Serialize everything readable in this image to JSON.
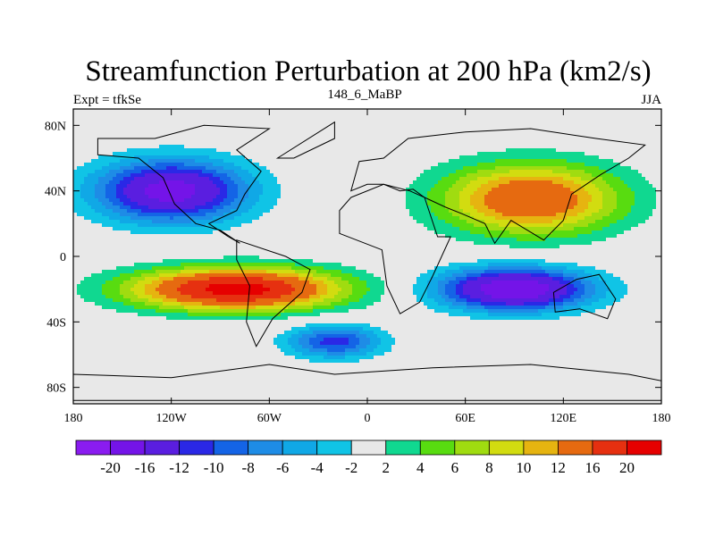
{
  "chart_data": {
    "type": "heatmap",
    "title": "Streamfunction Perturbation at 200 hPa (km2/s)",
    "left_label": "Expt = tfkSe",
    "center_label": "148_6_MaBP",
    "right_label": "JJA",
    "xlabel": "",
    "ylabel": "",
    "xlim": [
      -180,
      180
    ],
    "ylim": [
      -90,
      90
    ],
    "x_ticks": [
      {
        "value": -180,
        "label": "180"
      },
      {
        "value": -120,
        "label": "120W"
      },
      {
        "value": -60,
        "label": "60W"
      },
      {
        "value": 0,
        "label": "0"
      },
      {
        "value": 60,
        "label": "60E"
      },
      {
        "value": 120,
        "label": "120E"
      },
      {
        "value": 180,
        "label": "180"
      }
    ],
    "y_ticks": [
      {
        "value": 80,
        "label": "80N"
      },
      {
        "value": 40,
        "label": "40N"
      },
      {
        "value": 0,
        "label": "0"
      },
      {
        "value": -40,
        "label": "40S"
      },
      {
        "value": -80,
        "label": "80S"
      }
    ],
    "colorbar": {
      "levels": [
        "-20",
        "-16",
        "-12",
        "-10",
        "-8",
        "-6",
        "-4",
        "-2",
        "2",
        "4",
        "6",
        "8",
        "10",
        "12",
        "16",
        "20"
      ],
      "colors": [
        "#8a1cf0",
        "#7414e8",
        "#5a1ee0",
        "#2a28e6",
        "#1464e6",
        "#1e8ce6",
        "#10a8e6",
        "#10c4e6",
        "#e8e8e8",
        "#10d890",
        "#58dc10",
        "#a0dc10",
        "#d2dc10",
        "#e6b410",
        "#e66a10",
        "#e63010",
        "#e60000"
      ]
    },
    "anomaly_centers": [
      {
        "lon": -120,
        "lat": 40,
        "peak": -18,
        "sx": 32,
        "sy": 13
      },
      {
        "lon": 90,
        "lat": -20,
        "peak": -20,
        "sx": 32,
        "sy": 9
      },
      {
        "lon": -20,
        "lat": -52,
        "peak": -11,
        "sx": 20,
        "sy": 7
      },
      {
        "lon": 100,
        "lat": 35,
        "peak": 16,
        "sx": 38,
        "sy": 15
      },
      {
        "lon": -80,
        "lat": -20,
        "peak": 22,
        "sx": 45,
        "sy": 9
      }
    ],
    "palette_indices": {
      "plot_background": 8
    }
  }
}
